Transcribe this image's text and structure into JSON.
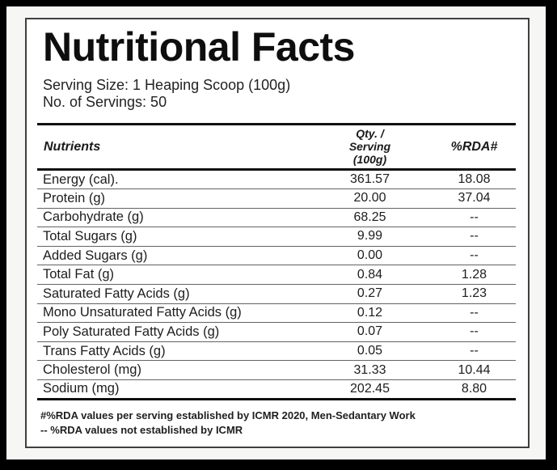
{
  "colors": {
    "frame_background": "#000000",
    "panel_background": "#f6f6f5",
    "card_background": "#ffffff",
    "card_border": "#3f3f3f",
    "rule_thick": "#101010",
    "rule_thin": "#636363",
    "text": "#1d1d1d"
  },
  "label": {
    "title": "Nutritional Facts",
    "serving_size": "Serving Size: 1 Heaping Scoop (100g)",
    "servings_count": "No. of Servings: 50",
    "table": {
      "headers": {
        "nutrients": "Nutrients",
        "qty": "Qty. / Serving (100g)",
        "qty_lines": [
          "Qty. /",
          "Serving",
          "(100g)"
        ],
        "rda": "%RDA#"
      },
      "rows": [
        {
          "name": "Energy (cal).",
          "qty": "361.57",
          "rda": "18.08"
        },
        {
          "name": "Protein (g)",
          "qty": "20.00",
          "rda": "37.04"
        },
        {
          "name": "Carbohydrate (g)",
          "qty": "68.25",
          "rda": "--"
        },
        {
          "name": "Total Sugars (g)",
          "qty": "9.99",
          "rda": "--"
        },
        {
          "name": "Added Sugars (g)",
          "qty": "0.00",
          "rda": "--"
        },
        {
          "name": "Total Fat (g)",
          "qty": "0.84",
          "rda": "1.28"
        },
        {
          "name": "Saturated Fatty Acids (g)",
          "qty": "0.27",
          "rda": "1.23"
        },
        {
          "name": "Mono Unsaturated Fatty Acids (g)",
          "qty": "0.12",
          "rda": "--"
        },
        {
          "name": "Poly Saturated Fatty Acids (g)",
          "qty": "0.07",
          "rda": "--"
        },
        {
          "name": "Trans Fatty Acids (g)",
          "qty": "0.05",
          "rda": "--"
        },
        {
          "name": "Cholesterol (mg)",
          "qty": "31.33",
          "rda": "10.44"
        },
        {
          "name": "Sodium (mg)",
          "qty": "202.45",
          "rda": "8.80"
        }
      ]
    },
    "footnotes": [
      "#%RDA values per serving established by ICMR 2020, Men-Sedantary Work",
      "-- %RDA values not established by ICMR"
    ]
  }
}
